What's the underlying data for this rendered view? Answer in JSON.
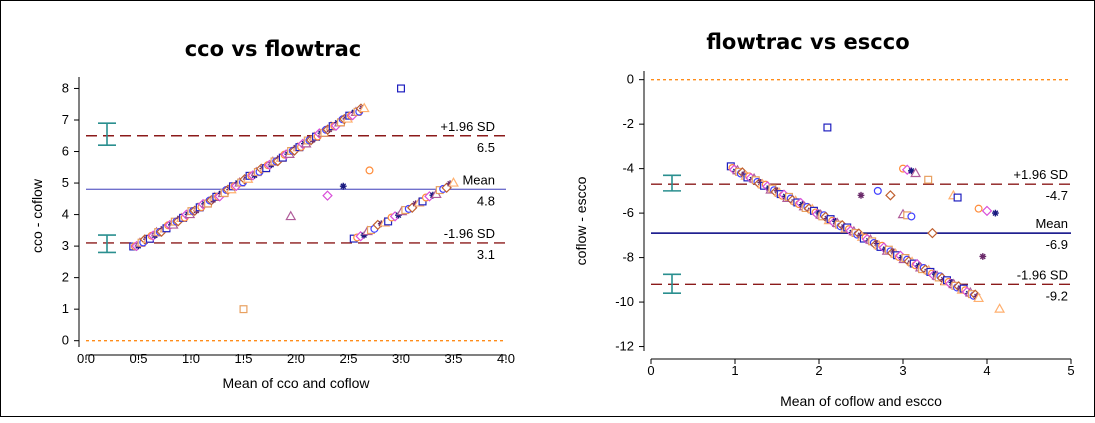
{
  "chart_data": [
    {
      "type": "scatter",
      "title": "cco vs flowtrac",
      "xlabel": "Mean of cco and coflow",
      "ylabel": "cco - coflow",
      "xlim": [
        0,
        4
      ],
      "ylim": [
        -0.2,
        8.3
      ],
      "x_ticks": [
        "0.0",
        "0.5",
        "1.0",
        "1.5",
        "2.0",
        "2.5",
        "3.0",
        "3.5",
        "4.0"
      ],
      "y_ticks": [
        "0",
        "1",
        "2",
        "3",
        "4",
        "5",
        "6",
        "7",
        "8"
      ],
      "reference_lines": [
        {
          "name": "+1.96 SD",
          "value": 6.5,
          "label": "6.5",
          "style": "dashed",
          "color": "#8b1a1a"
        },
        {
          "name": "Mean",
          "value": 4.8,
          "label": "4.8",
          "style": "solid",
          "color": "#7070cc"
        },
        {
          "name": "-1.96 SD",
          "value": 3.1,
          "label": "3.1",
          "style": "dashed",
          "color": "#8b1a1a"
        },
        {
          "name": "",
          "value": 0,
          "label": "",
          "style": "dotted",
          "color": "#ff8c1a"
        }
      ],
      "ci_bars": [
        {
          "x": 0.2,
          "low": 6.2,
          "high": 6.9
        },
        {
          "x": 0.2,
          "low": 2.8,
          "high": 3.35
        }
      ],
      "point_groups": [
        {
          "kind": "line",
          "x_start": 0.45,
          "y_start": 2.95,
          "x_end": 2.65,
          "y_end": 7.4,
          "count": 140
        },
        {
          "kind": "line",
          "x_start": 2.55,
          "y_start": 3.2,
          "x_end": 3.5,
          "y_end": 5.0,
          "count": 30
        }
      ],
      "outliers": [
        {
          "x": 3.0,
          "y": 8.0
        },
        {
          "x": 2.7,
          "y": 5.4
        },
        {
          "x": 2.3,
          "y": 4.6
        },
        {
          "x": 2.45,
          "y": 4.9
        },
        {
          "x": 1.95,
          "y": 3.95
        },
        {
          "x": 1.5,
          "y": 1.0
        }
      ]
    },
    {
      "type": "scatter",
      "title": "flowtrac vs escco",
      "xlabel": "Mean of coflow and escco",
      "ylabel": "coflow - escco",
      "xlim": [
        0,
        5
      ],
      "ylim": [
        -12.2,
        0.3
      ],
      "x_ticks": [
        "0",
        "1",
        "2",
        "3",
        "4",
        "5"
      ],
      "y_ticks": [
        "0",
        "-2",
        "-4",
        "-6",
        "-8",
        "-10",
        "-12"
      ],
      "reference_lines": [
        {
          "name": "+1.96 SD",
          "value": -4.7,
          "label": "-4.7",
          "style": "dashed",
          "color": "#8b1a1a"
        },
        {
          "name": "Mean",
          "value": -6.9,
          "label": "-6.9",
          "style": "solid",
          "color": "#000080"
        },
        {
          "name": "-1.96 SD",
          "value": -9.2,
          "label": "-9.2",
          "style": "dashed",
          "color": "#8b1a1a"
        },
        {
          "name": "",
          "value": 0,
          "label": "",
          "style": "dotted",
          "color": "#ff8c1a"
        }
      ],
      "ci_bars": [
        {
          "x": 0.25,
          "low": -5.0,
          "high": -4.3
        },
        {
          "x": 0.25,
          "low": -9.6,
          "high": -8.75
        }
      ],
      "point_groups": [
        {
          "kind": "line",
          "x_start": 0.95,
          "y_start": -3.95,
          "x_end": 3.9,
          "y_end": -9.8,
          "count": 150
        }
      ],
      "outliers": [
        {
          "x": 2.1,
          "y": -2.15
        },
        {
          "x": 3.0,
          "y": -4.0
        },
        {
          "x": 3.05,
          "y": -4.05
        },
        {
          "x": 3.1,
          "y": -4.1
        },
        {
          "x": 3.15,
          "y": -4.2
        },
        {
          "x": 3.3,
          "y": -4.5
        },
        {
          "x": 2.7,
          "y": -5.0
        },
        {
          "x": 2.85,
          "y": -5.2
        },
        {
          "x": 2.5,
          "y": -5.2
        },
        {
          "x": 3.6,
          "y": -5.2
        },
        {
          "x": 3.65,
          "y": -5.3
        },
        {
          "x": 3.9,
          "y": -5.8
        },
        {
          "x": 4.0,
          "y": -5.9
        },
        {
          "x": 4.1,
          "y": -6.0
        },
        {
          "x": 3.0,
          "y": -6.05
        },
        {
          "x": 3.05,
          "y": -6.1
        },
        {
          "x": 3.1,
          "y": -6.15
        },
        {
          "x": 3.35,
          "y": -6.9
        },
        {
          "x": 3.95,
          "y": -7.95
        },
        {
          "x": 4.15,
          "y": -10.3
        }
      ]
    }
  ]
}
